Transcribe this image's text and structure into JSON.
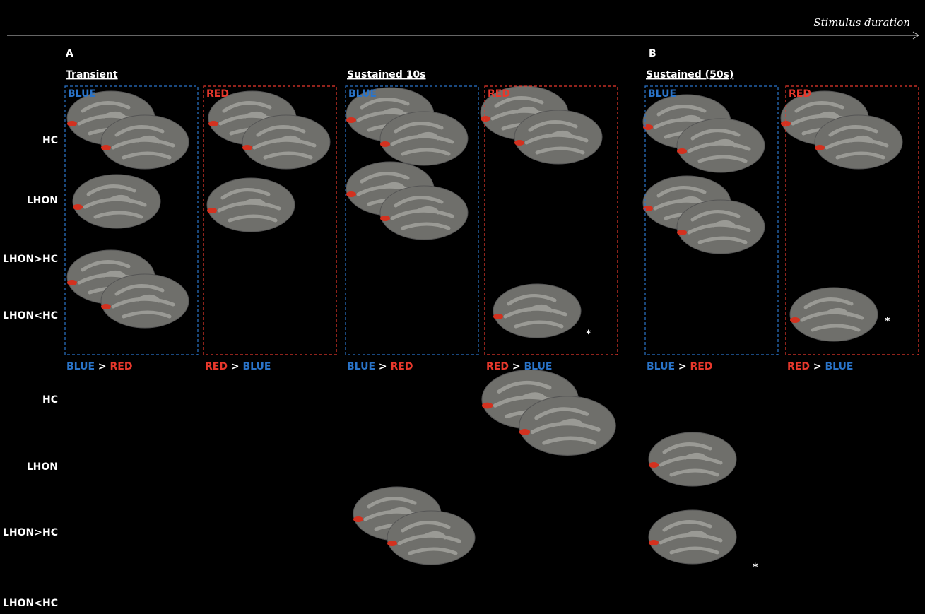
{
  "axis_label": "Stimulus duration",
  "panels": [
    {
      "label": "A"
    },
    {
      "label": "B"
    }
  ],
  "conditions": [
    {
      "title": "Transient",
      "boxes": [
        "BLUE",
        "RED"
      ],
      "contrasts": [
        [
          "BLUE",
          ">",
          "RED"
        ],
        [
          "RED",
          ">",
          "BLUE"
        ]
      ]
    },
    {
      "title": "Sustained 10s",
      "boxes": [
        "BLUE",
        "RED"
      ],
      "contrasts": [
        [
          "BLUE",
          ">",
          "RED"
        ],
        [
          "RED",
          ">",
          "BLUE"
        ]
      ]
    },
    {
      "title": "Sustained (50s)",
      "boxes": [
        "BLUE",
        "RED"
      ],
      "contrasts": [
        [
          "BLUE",
          ">",
          "RED"
        ],
        [
          "RED",
          ">",
          "BLUE"
        ]
      ]
    }
  ],
  "rows_top": [
    "HC",
    "LHON",
    "LHON>HC",
    "LHON<HC"
  ],
  "rows_bottom": [
    "HC",
    "LHON",
    "LHON>HC",
    "LHON<HC"
  ],
  "markers": [
    "*",
    "*",
    "*"
  ]
}
